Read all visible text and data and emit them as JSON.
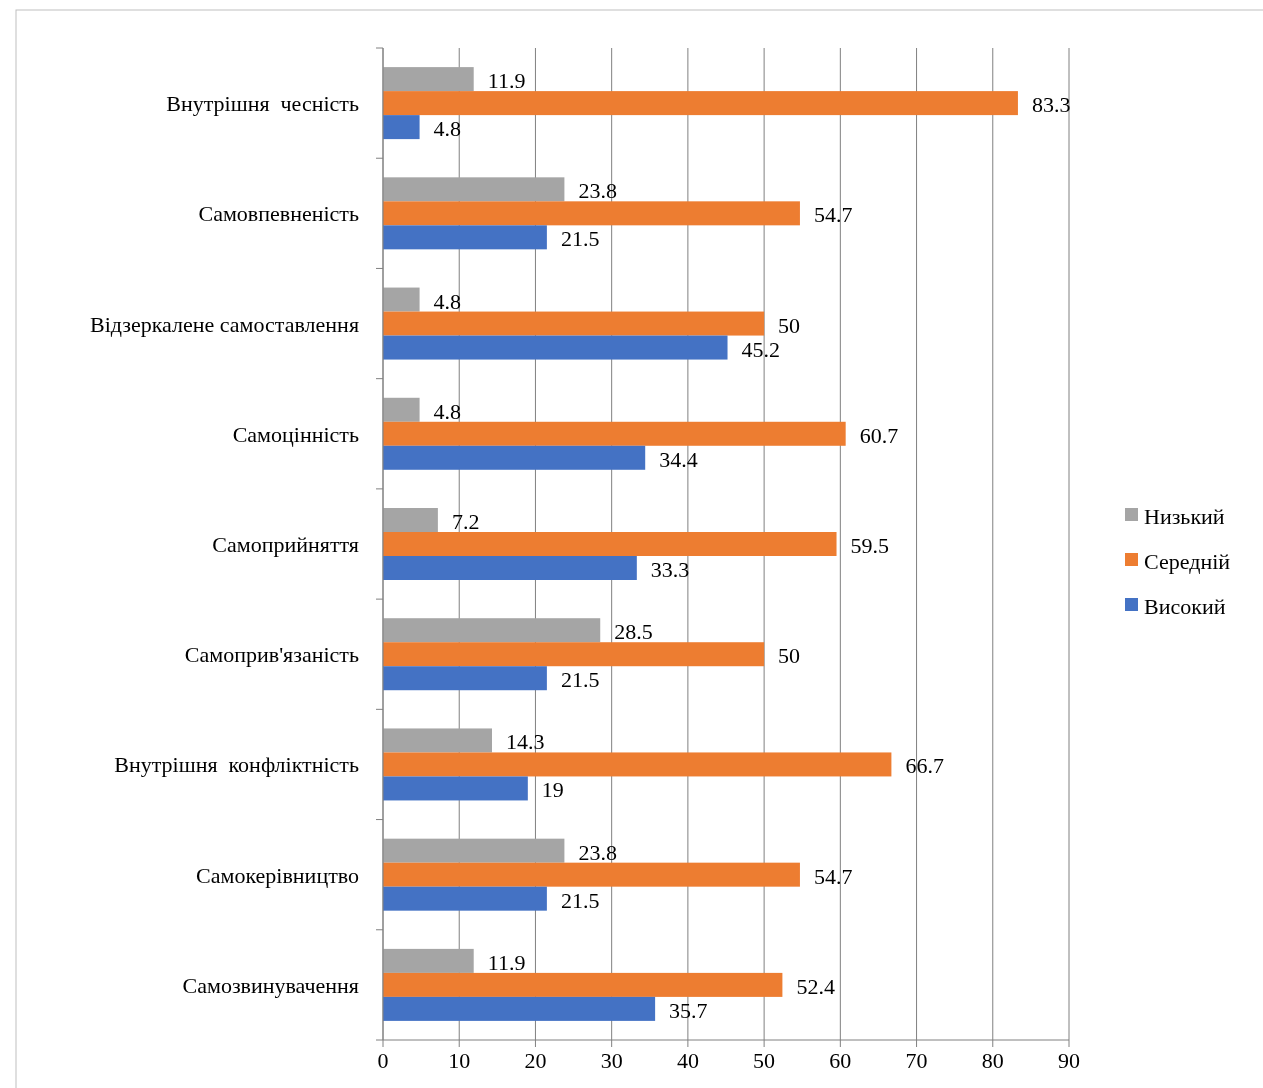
{
  "chart_data": {
    "type": "bar",
    "orientation": "horizontal",
    "categories": [
      "Внутрішня  чесність",
      "Самовпевненість",
      "Відзеркалене самоставлення",
      "Самоцінність",
      "Самоприйняття",
      "Самоприв'язаність",
      "Внутрішня  конфліктність",
      "Самокерівництво",
      "Самозвинувачення"
    ],
    "series": [
      {
        "name": "Низький",
        "color": "#a5a5a5",
        "values": [
          11.9,
          23.8,
          4.8,
          4.8,
          7.2,
          28.5,
          14.3,
          23.8,
          11.9
        ]
      },
      {
        "name": "Середній",
        "color": "#ed7d31",
        "values": [
          83.3,
          54.7,
          50,
          60.7,
          59.5,
          50,
          66.7,
          54.7,
          52.4
        ]
      },
      {
        "name": "Високий",
        "color": "#4472c4",
        "values": [
          4.8,
          21.5,
          45.2,
          34.4,
          33.3,
          21.5,
          19,
          21.5,
          35.7
        ]
      }
    ],
    "xlim": [
      0,
      90
    ],
    "xticks": [
      0,
      10,
      20,
      30,
      40,
      50,
      60,
      70,
      80,
      90
    ],
    "grid": "x",
    "legend": "right",
    "data_labels": true
  }
}
